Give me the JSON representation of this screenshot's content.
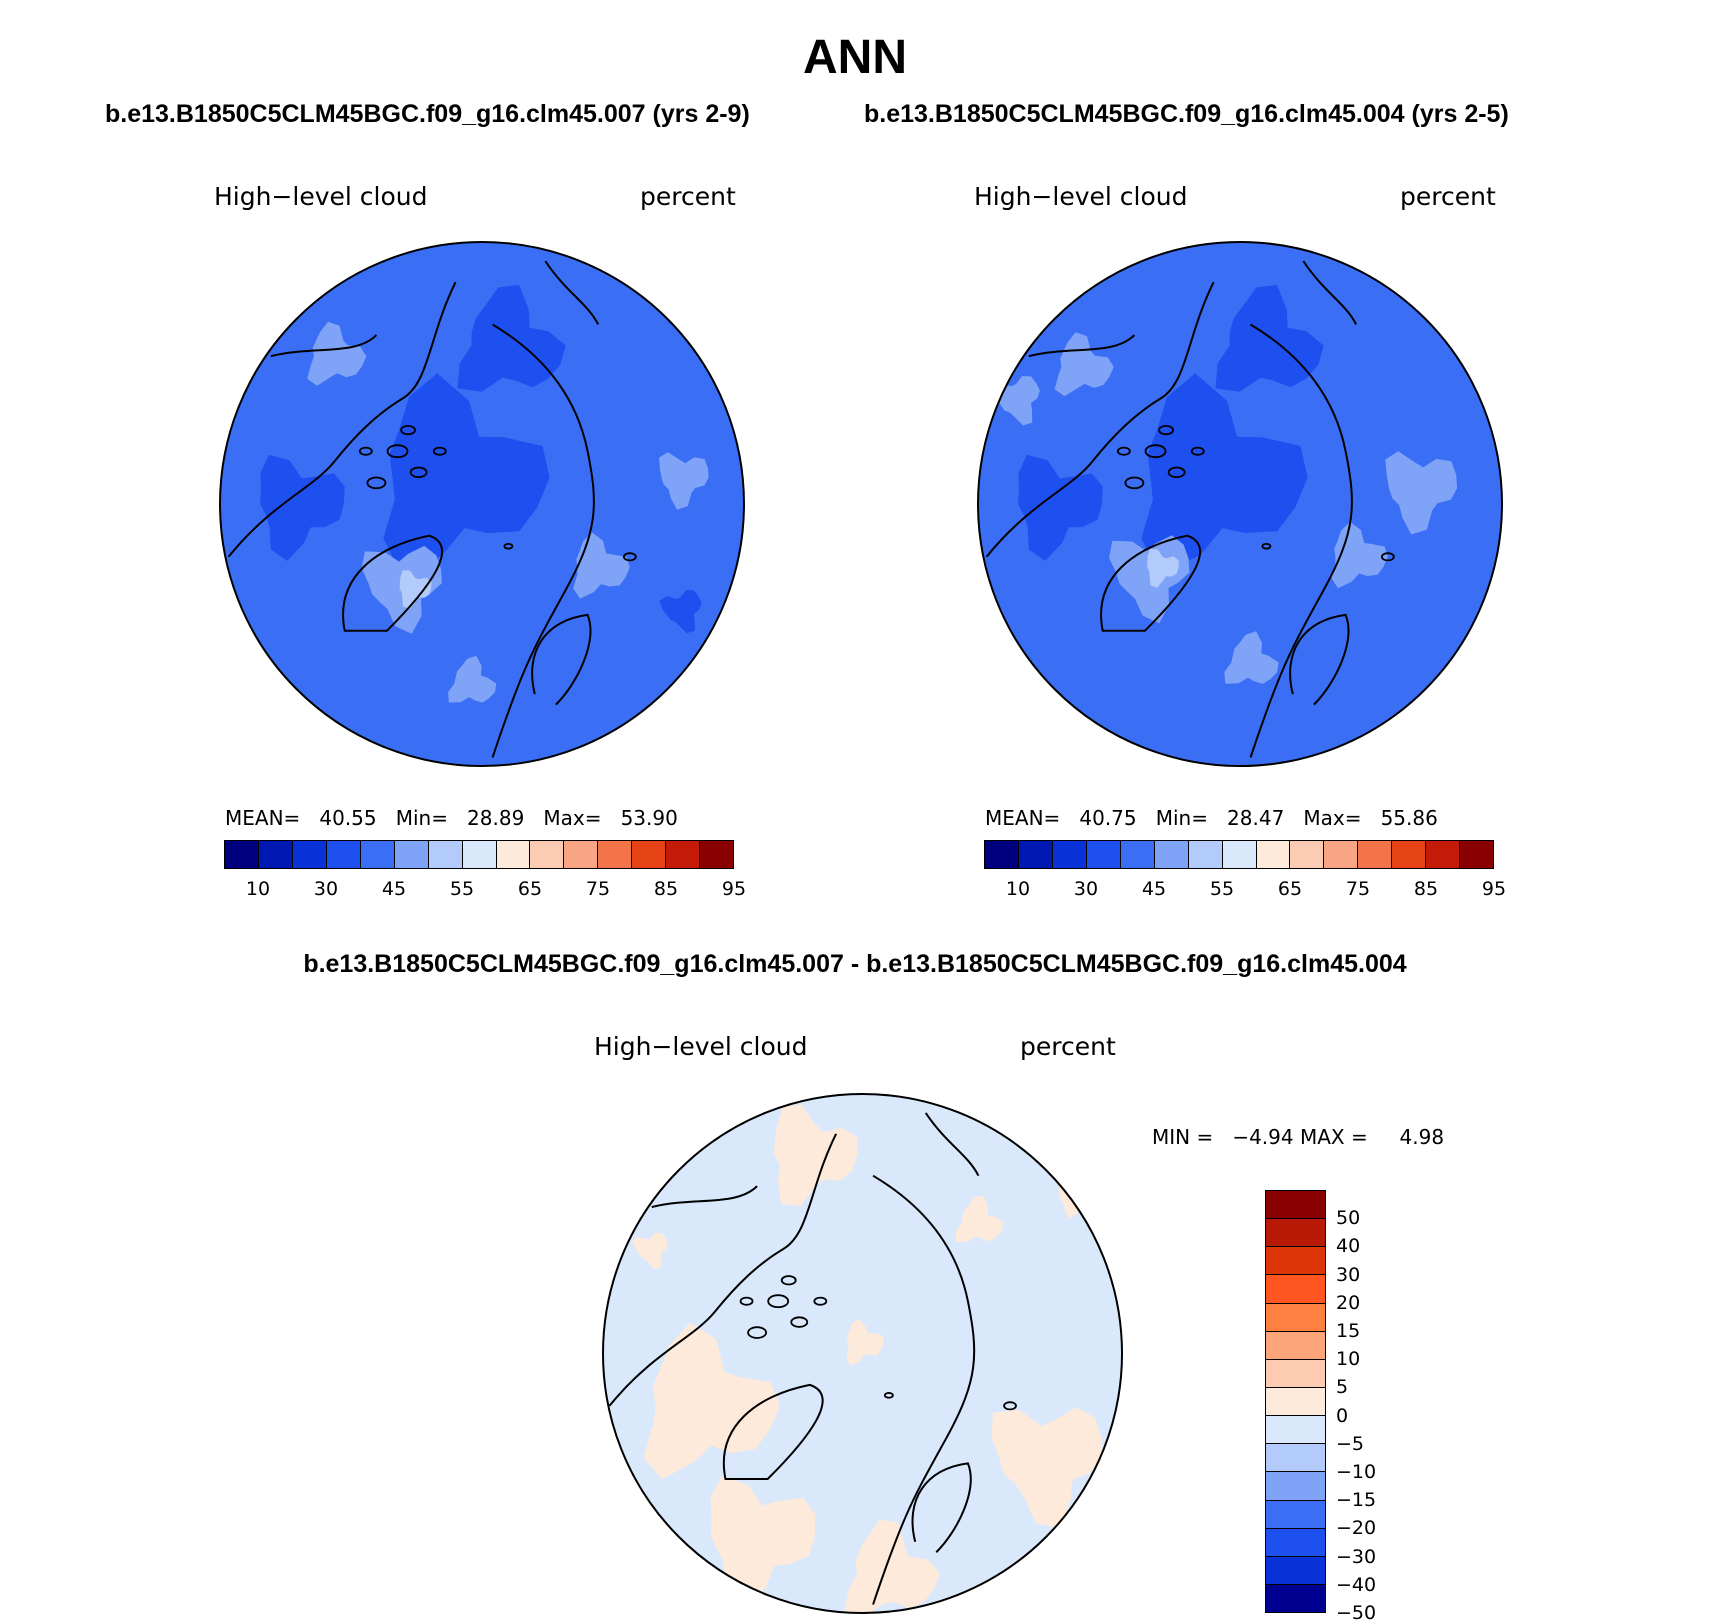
{
  "title": "ANN",
  "case_titles": [
    "b.e13.B1850C5CLM45BGC.f09_g16.clm45.007 (yrs 2-9)",
    "b.e13.B1850C5CLM45BGC.f09_g16.clm45.004 (yrs 2-5)"
  ],
  "diff_title": "b.e13.B1850C5CLM45BGC.f09_g16.clm45.007 - b.e13.B1850C5CLM45BGC.f09_g16.clm45.004",
  "panels": [
    {
      "variable": "High−level cloud",
      "units": "percent",
      "mean_label": "MEAN=",
      "mean": "40.55",
      "min_label": "Min=",
      "min": "28.89",
      "max_label": "Max=",
      "max": "53.90",
      "colorbar_ticks": [
        "10",
        "30",
        "45",
        "55",
        "65",
        "75",
        "85",
        "95"
      ]
    },
    {
      "variable": "High−level cloud",
      "units": "percent",
      "mean_label": "MEAN=",
      "mean": "40.75",
      "min_label": "Min=",
      "min": "28.47",
      "max_label": "Max=",
      "max": "55.86",
      "colorbar_ticks": [
        "10",
        "30",
        "45",
        "55",
        "65",
        "75",
        "85",
        "95"
      ]
    }
  ],
  "diff_panel": {
    "variable": "High−level cloud",
    "units": "percent",
    "min_label": "MIN =",
    "min": "−4.94",
    "max_label": "MAX =",
    "max": "4.98",
    "colorbar_ticks": [
      "50",
      "40",
      "30",
      "20",
      "15",
      "10",
      "5",
      "0",
      "−5",
      "−10",
      "−15",
      "−20",
      "−30",
      "−40",
      "−50"
    ]
  },
  "colors": {
    "abs_scale": [
      "#00007f",
      "#0019b3",
      "#0a32d9",
      "#1e4fef",
      "#3a6ff5",
      "#7fa3f7",
      "#b3cbfa",
      "#d9e8fb",
      "#feeadb",
      "#fccbb3",
      "#f9a585",
      "#f47449",
      "#e64417",
      "#c41a08",
      "#8a0000"
    ],
    "diff_scale_top_down": [
      "#8a0000",
      "#b81a05",
      "#dd3508",
      "#ff5520",
      "#ff8040",
      "#fca57a",
      "#fdcbb0",
      "#feeadb",
      "#d9e8fb",
      "#b3cbfa",
      "#7fa3f7",
      "#3a6ff5",
      "#1e4fef",
      "#0a32d9",
      "#000090"
    ],
    "ocean_main": "#3a6ff5",
    "coast": "#000000"
  }
}
